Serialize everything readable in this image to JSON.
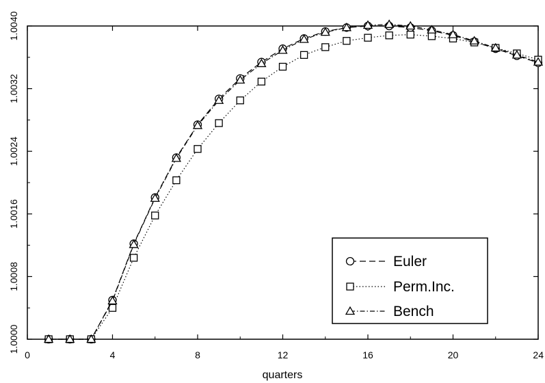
{
  "chart_data": {
    "type": "line",
    "title": "",
    "xlabel": "quarters",
    "ylabel": "",
    "xlim": [
      0,
      24
    ],
    "ylim": [
      1.0,
      1.004
    ],
    "xticks": [
      0,
      4,
      8,
      12,
      16,
      20,
      24
    ],
    "xtick_labels": [
      "0",
      "4",
      "8",
      "12",
      "16",
      "20",
      "24"
    ],
    "yticks": [
      1.0,
      1.0008,
      1.0016,
      1.0024,
      1.0032,
      1.004
    ],
    "ytick_labels": [
      "1.0000",
      "1.0008",
      "1.0016",
      "1.0024",
      "1.0032",
      "1.0040"
    ],
    "grid": false,
    "legend_position": "bottom-right",
    "x": [
      1,
      2,
      3,
      4,
      5,
      6,
      7,
      8,
      9,
      10,
      11,
      12,
      13,
      14,
      15,
      16,
      17,
      18,
      19,
      20,
      21,
      22,
      23,
      24
    ],
    "series": [
      {
        "name": "Euler",
        "marker": "circle",
        "line_style": "dashed",
        "values": [
          1.0,
          1.0,
          1.0,
          1.0005,
          1.00122,
          1.00181,
          1.00232,
          1.00274,
          1.00307,
          1.00333,
          1.00354,
          1.00371,
          1.00384,
          1.00393,
          1.00398,
          1.004,
          1.004,
          1.00398,
          1.00394,
          1.00388,
          1.0038,
          1.00371,
          1.00362,
          1.00353
        ]
      },
      {
        "name": "Perm.Inc.",
        "marker": "square",
        "line_style": "dotted",
        "values": [
          1.0,
          1.0,
          1.0,
          1.0004,
          1.00104,
          1.00158,
          1.00203,
          1.00243,
          1.00276,
          1.00305,
          1.00329,
          1.00348,
          1.00363,
          1.00373,
          1.00381,
          1.00385,
          1.00388,
          1.00389,
          1.00387,
          1.00384,
          1.00379,
          1.00372,
          1.00365,
          1.00357
        ]
      },
      {
        "name": "Bench",
        "marker": "triangle",
        "line_style": "dash-dot",
        "values": [
          1.0,
          1.0,
          1.0,
          1.00049,
          1.00121,
          1.0018,
          1.00231,
          1.00273,
          1.00305,
          1.00331,
          1.00352,
          1.00369,
          1.00383,
          1.00392,
          1.00398,
          1.00401,
          1.00402,
          1.004,
          1.00395,
          1.00389,
          1.00381,
          1.00372,
          1.00363,
          1.00354
        ]
      }
    ]
  }
}
